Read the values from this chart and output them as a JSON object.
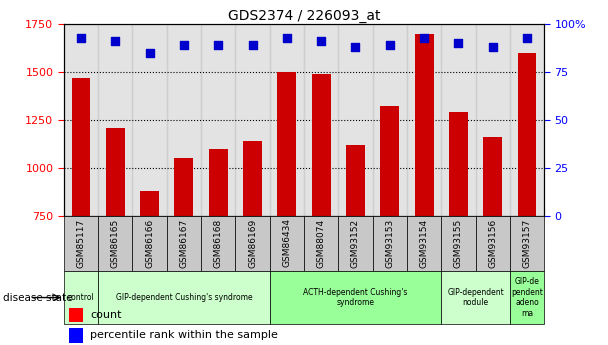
{
  "title": "GDS2374 / 226093_at",
  "samples": [
    "GSM85117",
    "GSM86165",
    "GSM86166",
    "GSM86167",
    "GSM86168",
    "GSM86169",
    "GSM86434",
    "GSM88074",
    "GSM93152",
    "GSM93153",
    "GSM93154",
    "GSM93155",
    "GSM93156",
    "GSM93157"
  ],
  "counts": [
    1470,
    1210,
    880,
    1050,
    1100,
    1140,
    1500,
    1490,
    1120,
    1320,
    1700,
    1290,
    1160,
    1600
  ],
  "percentiles": [
    93,
    91,
    85,
    89,
    89,
    89,
    93,
    91,
    88,
    89,
    93,
    90,
    88,
    93
  ],
  "bar_color": "#cc0000",
  "dot_color": "#0000cc",
  "ylim_left": [
    750,
    1750
  ],
  "ylim_right": [
    0,
    100
  ],
  "yticks_left": [
    750,
    1000,
    1250,
    1500,
    1750
  ],
  "yticks_right": [
    0,
    25,
    50,
    75,
    100
  ],
  "ytick_labels_right": [
    "0",
    "25",
    "50",
    "75",
    "100%"
  ],
  "grid_values": [
    1000,
    1250,
    1500
  ],
  "disease_groups": [
    {
      "label": "control",
      "indices": [
        0,
        0
      ],
      "color": "#ccffcc"
    },
    {
      "label": "GIP-dependent Cushing's syndrome",
      "indices": [
        1,
        5
      ],
      "color": "#ccffcc"
    },
    {
      "label": "ACTH-dependent Cushing's\nsyndrome",
      "indices": [
        6,
        10
      ],
      "color": "#99ff99"
    },
    {
      "label": "GIP-dependent\nnodule",
      "indices": [
        11,
        12
      ],
      "color": "#ccffcc"
    },
    {
      "label": "GIP-de\npendent\nadeno\nma",
      "indices": [
        13,
        13
      ],
      "color": "#99ff99"
    }
  ],
  "disease_label": "disease state",
  "legend_count": "count",
  "legend_percentile": "percentile rank within the sample",
  "bar_width": 0.55,
  "dot_size": 40,
  "bg_color": "#c8c8c8"
}
